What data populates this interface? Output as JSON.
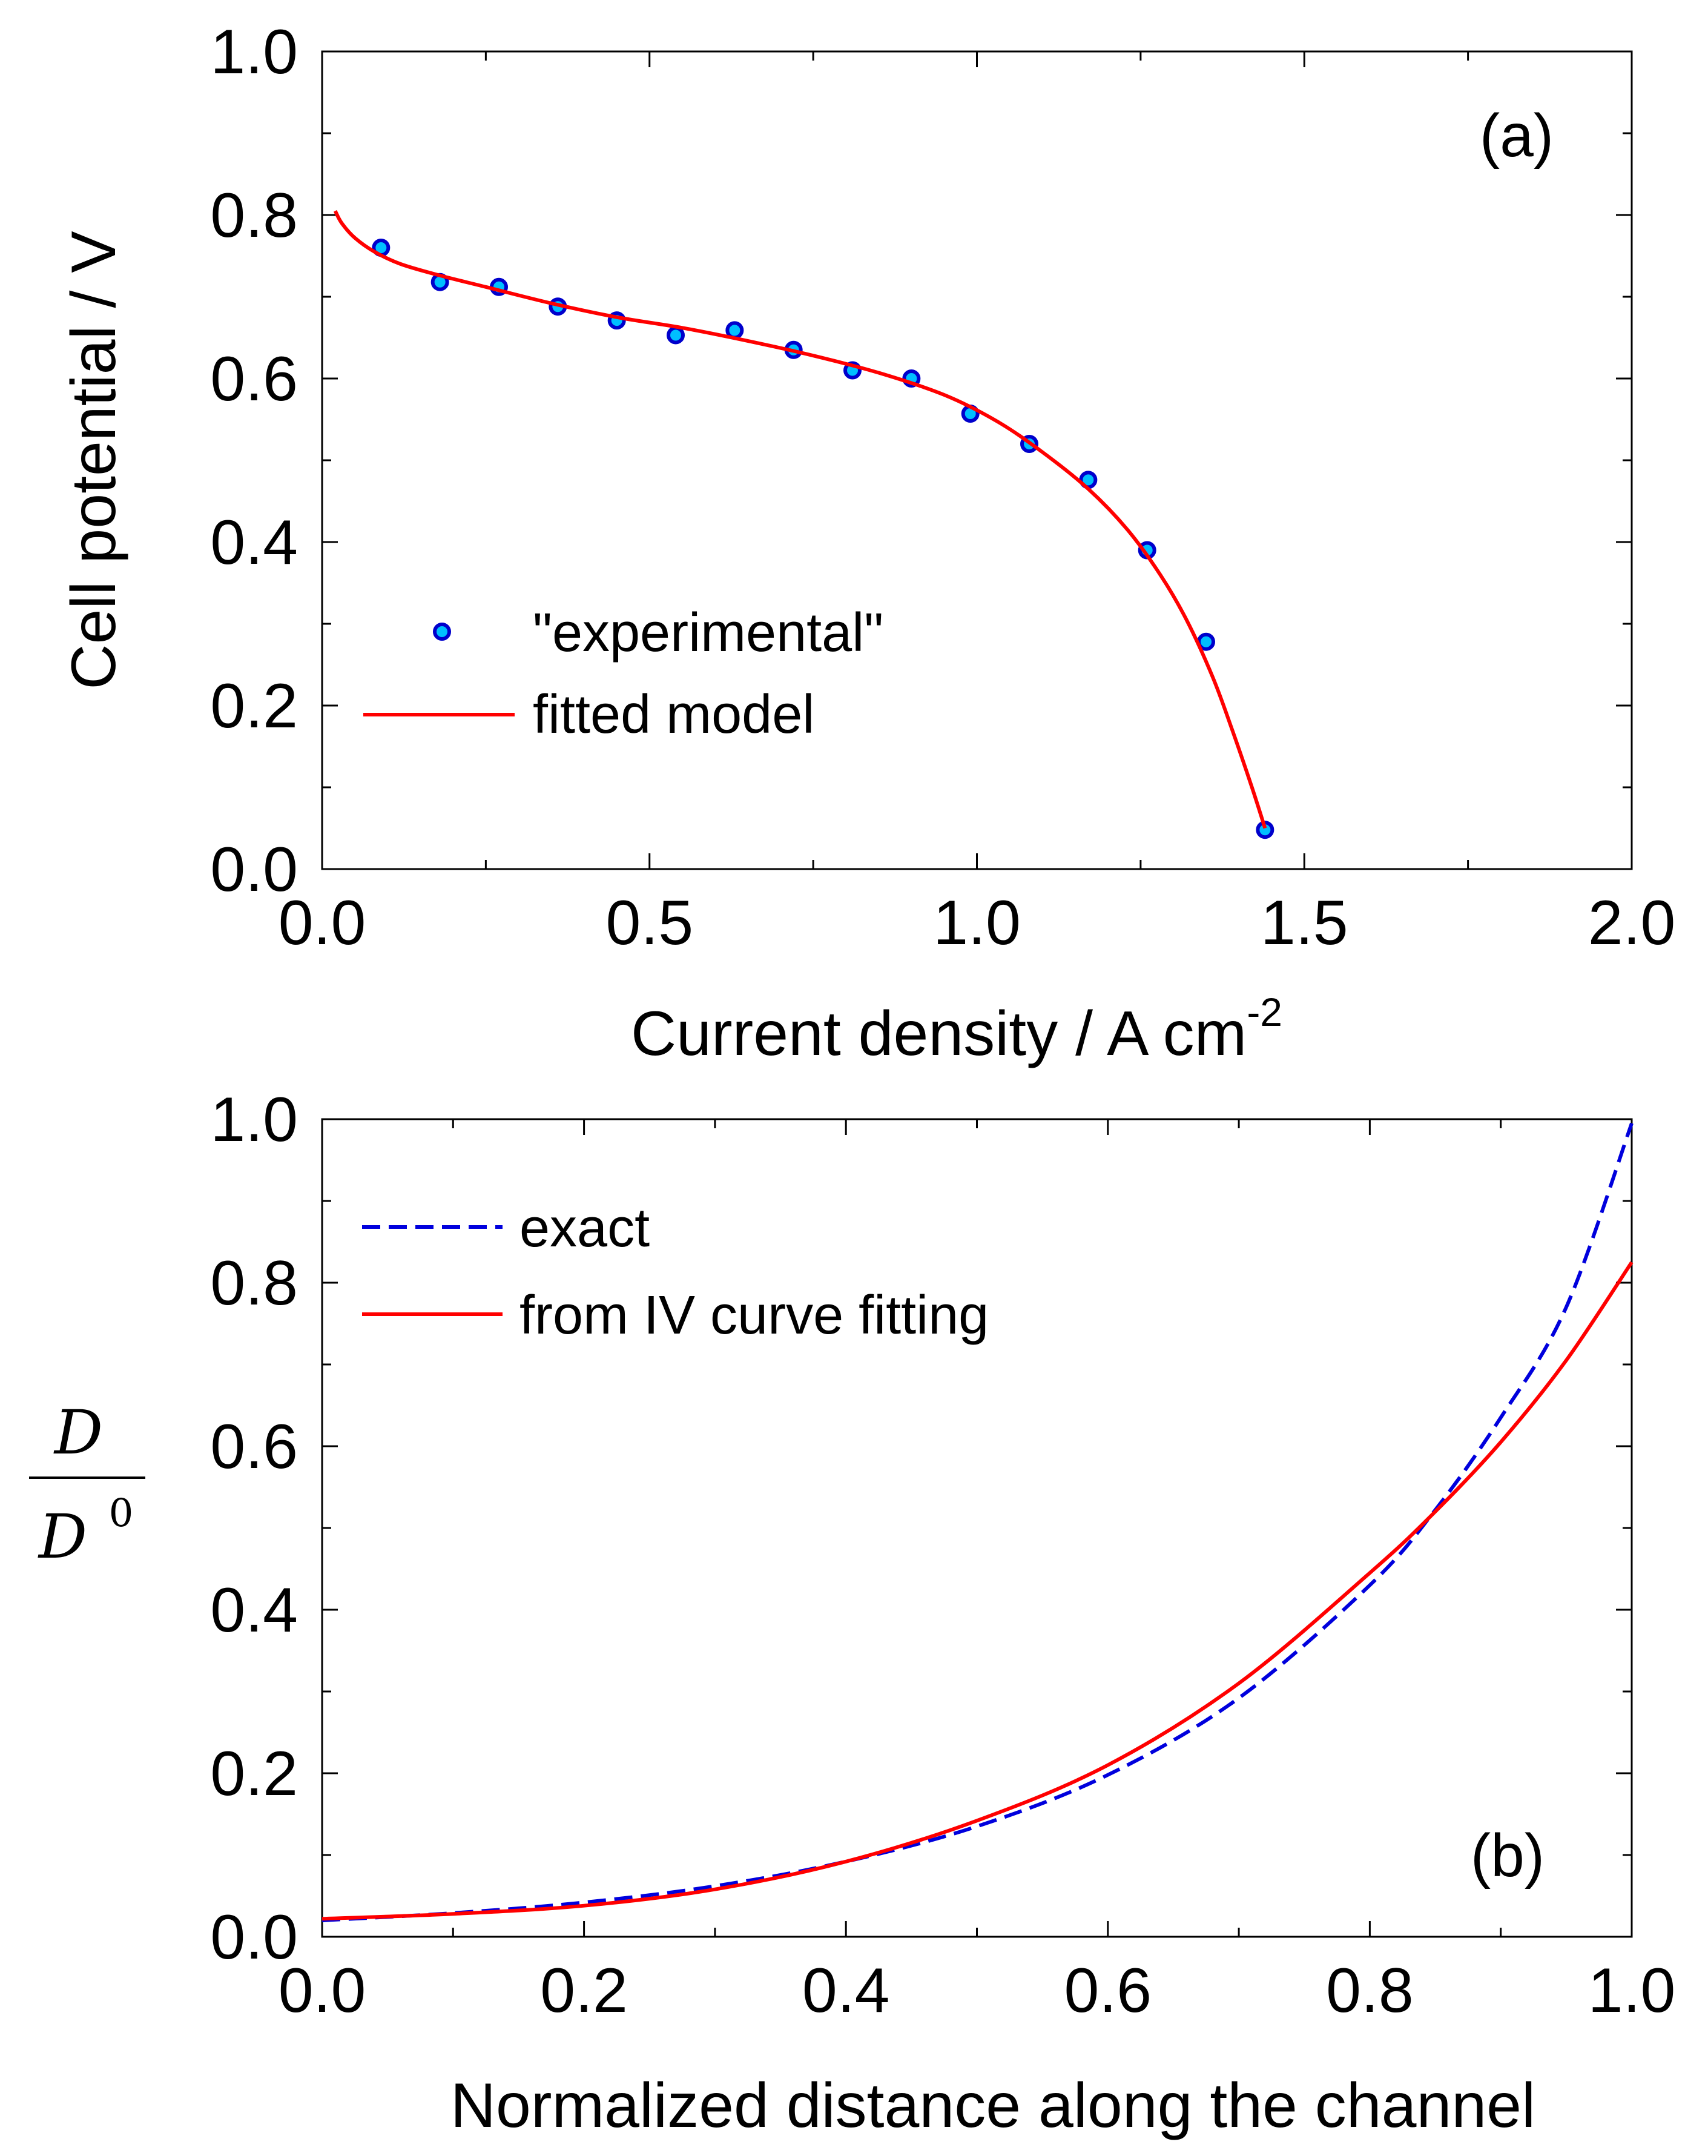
{
  "chart_data": [
    {
      "type": "line",
      "panel_label": "(a)",
      "xlabel": "Current density / A cm",
      "xlabel_sup": "-2",
      "ylabel": "Cell potential / V",
      "xlim": [
        0.0,
        2.0
      ],
      "ylim": [
        0.0,
        1.0
      ],
      "x_ticks": [
        "0.0",
        "0.5",
        "1.0",
        "1.5",
        "2.0"
      ],
      "y_ticks": [
        "0.0",
        "0.2",
        "0.4",
        "0.6",
        "0.8",
        "1.0"
      ],
      "legend_position": "lower-left",
      "series": [
        {
          "name": "\"experimental\"",
          "kind": "scatter",
          "color": "#00bfff",
          "edge_color": "#0000cc",
          "x": [
            0.09,
            0.18,
            0.27,
            0.36,
            0.45,
            0.54,
            0.63,
            0.72,
            0.81,
            0.9,
            0.99,
            1.08,
            1.17,
            1.26,
            1.35,
            1.44
          ],
          "y": [
            0.76,
            0.718,
            0.712,
            0.688,
            0.671,
            0.653,
            0.659,
            0.635,
            0.61,
            0.6,
            0.557,
            0.52,
            0.476,
            0.39,
            0.278,
            0.048
          ]
        },
        {
          "name": "fitted model",
          "kind": "line",
          "color": "#ff0000",
          "x": [
            0.02,
            0.03,
            0.05,
            0.08,
            0.12,
            0.18,
            0.25,
            0.35,
            0.45,
            0.55,
            0.65,
            0.75,
            0.85,
            0.95,
            1.03,
            1.1,
            1.17,
            1.23,
            1.28,
            1.32,
            1.36,
            1.39,
            1.42,
            1.44
          ],
          "y": [
            0.805,
            0.79,
            0.772,
            0.755,
            0.74,
            0.726,
            0.712,
            0.692,
            0.675,
            0.662,
            0.646,
            0.628,
            0.607,
            0.58,
            0.548,
            0.51,
            0.465,
            0.415,
            0.36,
            0.305,
            0.235,
            0.17,
            0.1,
            0.05
          ]
        }
      ]
    },
    {
      "type": "line",
      "panel_label": "(b)",
      "xlabel": "Normalized distance along the channel",
      "ylabel_num": "D",
      "ylabel_den": "D",
      "ylabel_den_sup": "0",
      "xlim": [
        0.0,
        1.0
      ],
      "ylim": [
        0.0,
        1.0
      ],
      "x_ticks": [
        "0.0",
        "0.2",
        "0.4",
        "0.6",
        "0.8",
        "1.0"
      ],
      "y_ticks": [
        "0.0",
        "0.2",
        "0.4",
        "0.6",
        "0.8",
        "1.0"
      ],
      "legend_position": "top-left",
      "series": [
        {
          "name": "exact",
          "kind": "dashed",
          "color": "#0000dd",
          "x": [
            0.0,
            0.1,
            0.2,
            0.3,
            0.4,
            0.5,
            0.6,
            0.7,
            0.8,
            0.85,
            0.9,
            0.95,
            1.0
          ],
          "y": [
            0.02,
            0.029,
            0.042,
            0.062,
            0.092,
            0.135,
            0.198,
            0.292,
            0.43,
            0.522,
            0.635,
            0.77,
            0.995
          ]
        },
        {
          "name": "from IV curve fitting",
          "kind": "line",
          "color": "#ff0000",
          "x": [
            0.0,
            0.1,
            0.2,
            0.3,
            0.4,
            0.5,
            0.6,
            0.7,
            0.8,
            0.85,
            0.9,
            0.95,
            1.0
          ],
          "y": [
            0.022,
            0.028,
            0.038,
            0.058,
            0.092,
            0.142,
            0.21,
            0.31,
            0.445,
            0.52,
            0.605,
            0.705,
            0.825
          ]
        }
      ]
    }
  ]
}
